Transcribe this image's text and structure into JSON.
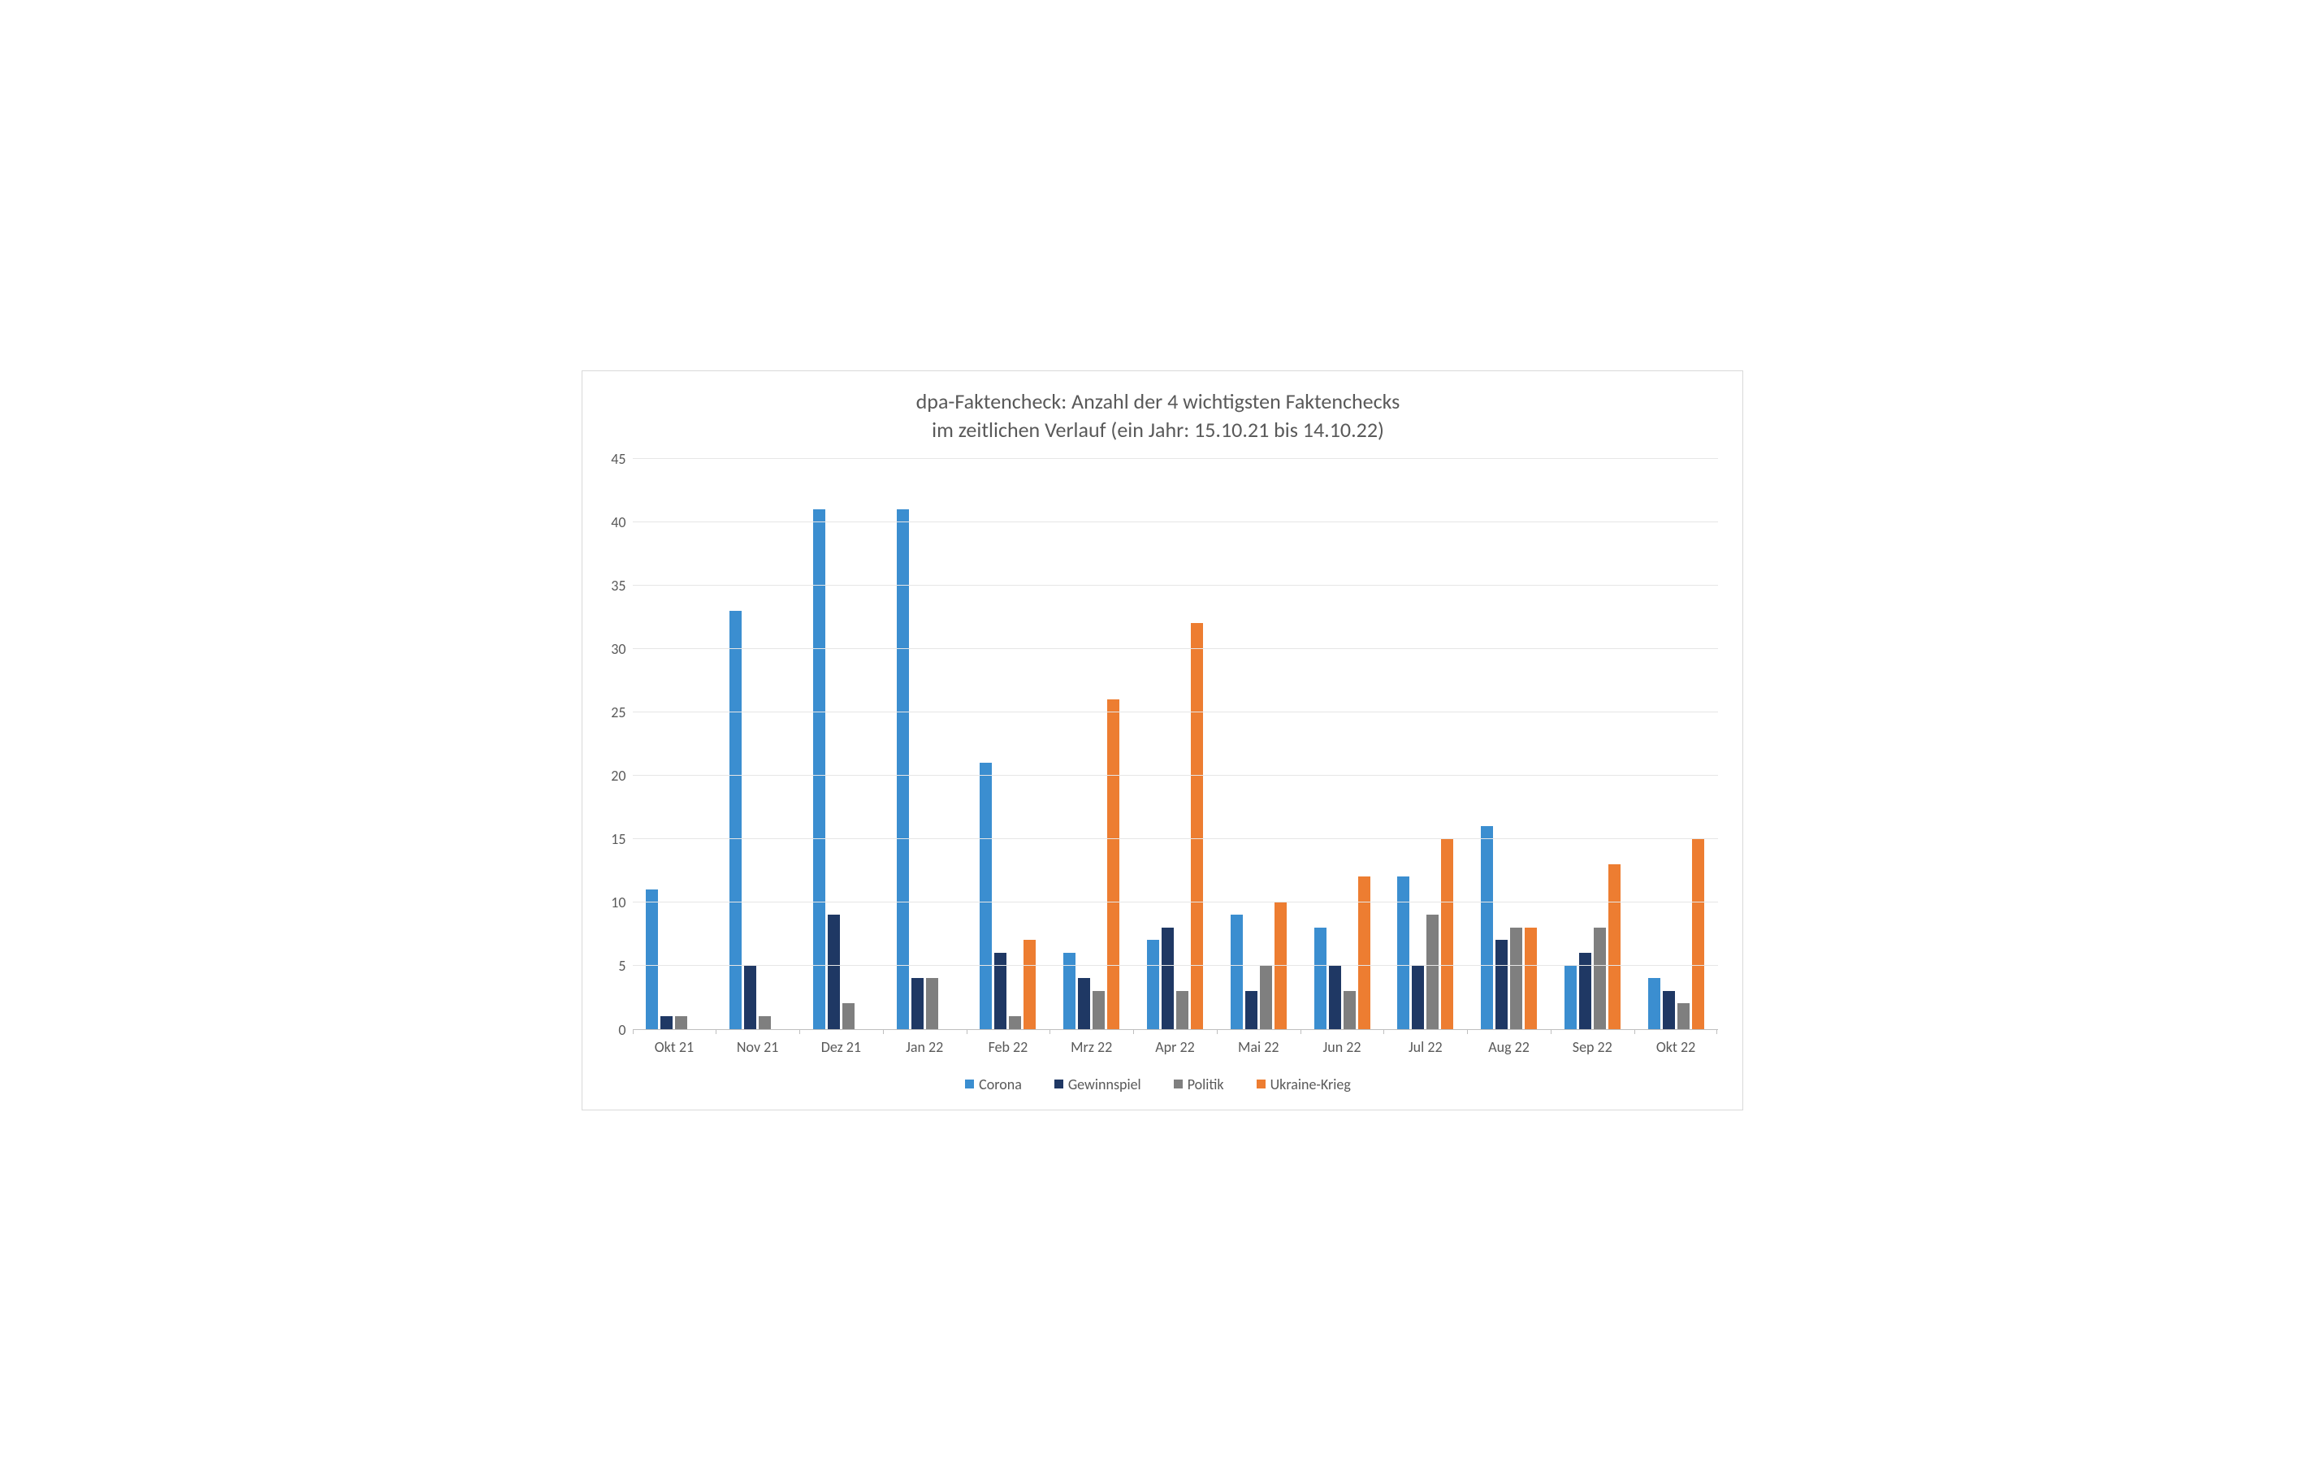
{
  "chart": {
    "type": "bar",
    "title_line1": "dpa-Faktencheck: Anzahl der 4 wichtigsten Faktenchecks",
    "title_line2": "im zeitlichen Verlauf (ein Jahr: 15.10.21 bis 14.10.22)",
    "title_fontsize": 26,
    "title_color": "#595959",
    "background_color": "#ffffff",
    "border_color": "#d9d9d9",
    "grid_color": "#e6e6e6",
    "axis_line_color": "#bfbfbf",
    "axis_text_color": "#595959",
    "axis_fontsize": 18,
    "legend_fontsize": 18,
    "ylim": [
      0,
      45
    ],
    "ytick_step": 5,
    "yticks": [
      0,
      5,
      10,
      15,
      20,
      25,
      30,
      35,
      40,
      45
    ],
    "categories": [
      "Okt 21",
      "Nov 21",
      "Dez 21",
      "Jan 22",
      "Feb 22",
      "Mrz 22",
      "Apr 22",
      "Mai 22",
      "Jun 22",
      "Jul 22",
      "Aug 22",
      "Sep 22",
      "Okt 22"
    ],
    "series": [
      {
        "name": "Corona",
        "color": "#3b8ed0",
        "values": [
          11,
          33,
          41,
          41,
          21,
          6,
          7,
          9,
          8,
          12,
          16,
          5,
          4
        ]
      },
      {
        "name": "Gewinnspiel",
        "color": "#1f3864",
        "values": [
          1,
          5,
          9,
          4,
          6,
          4,
          8,
          3,
          5,
          5,
          7,
          6,
          3
        ]
      },
      {
        "name": "Politik",
        "color": "#7f7f7f",
        "values": [
          1,
          1,
          2,
          4,
          1,
          3,
          3,
          5,
          3,
          9,
          8,
          8,
          2
        ]
      },
      {
        "name": "Ukraine-Krieg",
        "color": "#ed7d31",
        "values": [
          0,
          0,
          0,
          0,
          7,
          26,
          32,
          10,
          12,
          15,
          8,
          13,
          15
        ]
      }
    ]
  }
}
